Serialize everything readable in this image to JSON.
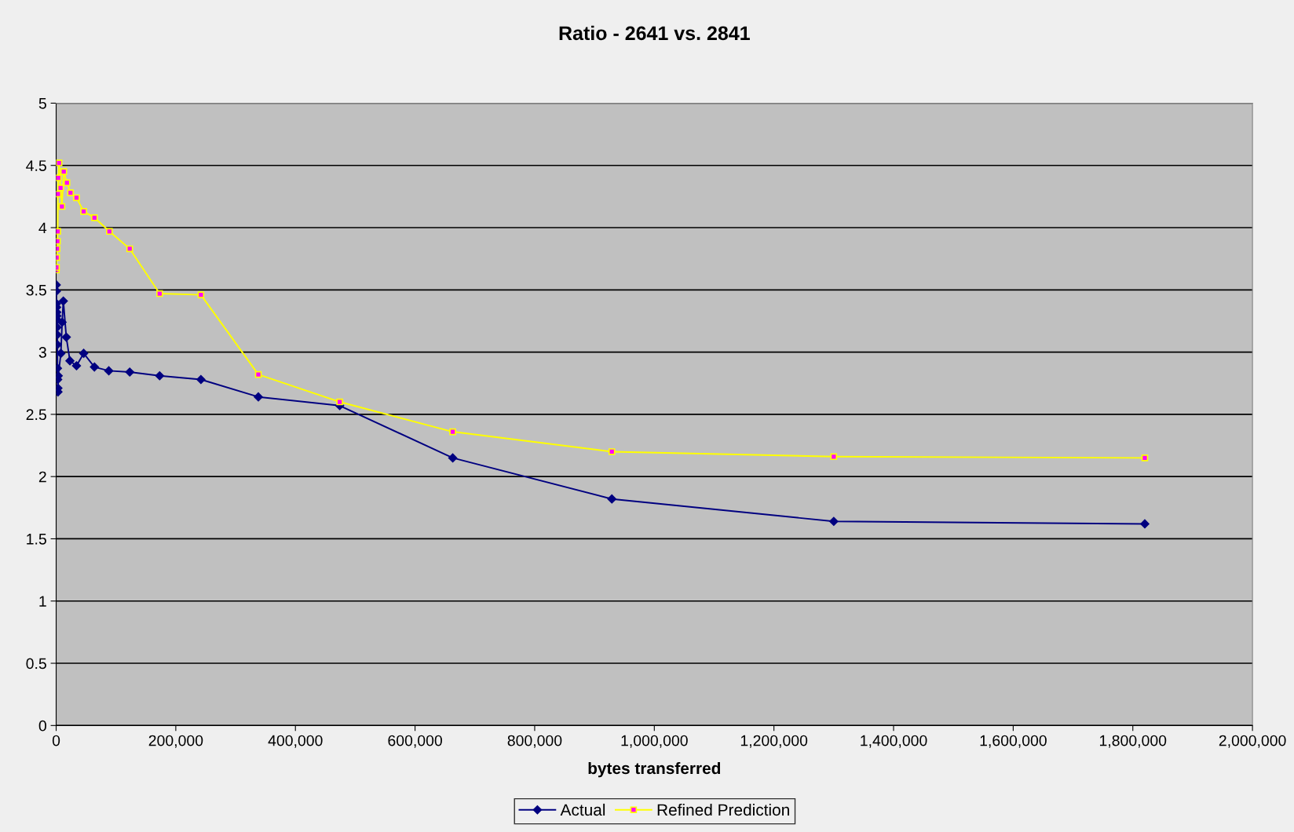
{
  "chart_data": {
    "type": "line",
    "title": "Ratio - 2641 vs. 2841",
    "xlabel": "bytes transferred",
    "xlim": [
      0,
      2000000
    ],
    "ylim": [
      0,
      5
    ],
    "xticks": [
      0,
      {
        "value": 200000,
        "label": "200,000"
      },
      {
        "value": 400000,
        "label": "400,000"
      },
      {
        "value": 600000,
        "label": "600,000"
      },
      {
        "value": 800000,
        "label": "800,000"
      },
      {
        "value": 1000000,
        "label": "1,000,000"
      },
      {
        "value": 1200000,
        "label": "1,200,000"
      },
      {
        "value": 1400000,
        "label": "1,400,000"
      },
      {
        "value": 1600000,
        "label": "1,600,000"
      },
      {
        "value": 1800000,
        "label": "1,800,000"
      },
      {
        "value": 2000000,
        "label": "2,000,000"
      }
    ],
    "yticks": [
      0,
      0.5,
      1,
      1.5,
      2,
      2.5,
      3,
      3.5,
      4,
      4.5,
      5
    ],
    "grid": "y",
    "legend": "bottom",
    "line_style": "solid",
    "series": [
      {
        "name": "Actual",
        "color": "#000080",
        "marker": "diamond",
        "x": [
          200,
          400,
          600,
          800,
          1000,
          1200,
          1400,
          1600,
          1800,
          2000,
          2200,
          2600,
          3000,
          3100,
          3500,
          7900,
          10000,
          12000,
          17000,
          23000,
          34000,
          46000,
          64000,
          88000,
          123000,
          173000,
          242000,
          338000,
          474000,
          663000,
          929000,
          1300000,
          1820000
        ],
        "values": [
          3.54,
          3.49,
          3.39,
          3.36,
          3.32,
          3.29,
          3.26,
          3.2,
          3.14,
          3.06,
          2.87,
          2.78,
          2.71,
          2.68,
          2.81,
          2.99,
          3.24,
          3.41,
          3.12,
          2.93,
          2.89,
          2.99,
          2.88,
          2.85,
          2.84,
          2.81,
          2.78,
          2.64,
          2.57,
          2.15,
          1.82,
          1.64,
          1.62
        ]
      },
      {
        "name": "Refined Prediction",
        "color": "#ffff00",
        "marker": "square",
        "x": [
          300,
          500,
          800,
          1500,
          2100,
          2600,
          3000,
          3500,
          4800,
          7400,
          9600,
          12700,
          18000,
          24000,
          34000,
          46000,
          64000,
          89000,
          123000,
          173000,
          242000,
          338000,
          474000,
          663000,
          929000,
          1300000,
          1820000
        ],
        "values": [
          3.66,
          3.68,
          3.76,
          3.83,
          3.89,
          3.97,
          4.27,
          4.4,
          4.52,
          4.32,
          4.17,
          4.45,
          4.36,
          4.28,
          4.24,
          4.13,
          4.08,
          3.97,
          3.83,
          3.47,
          3.46,
          2.82,
          2.6,
          2.36,
          2.2,
          2.16,
          2.15
        ]
      }
    ]
  }
}
